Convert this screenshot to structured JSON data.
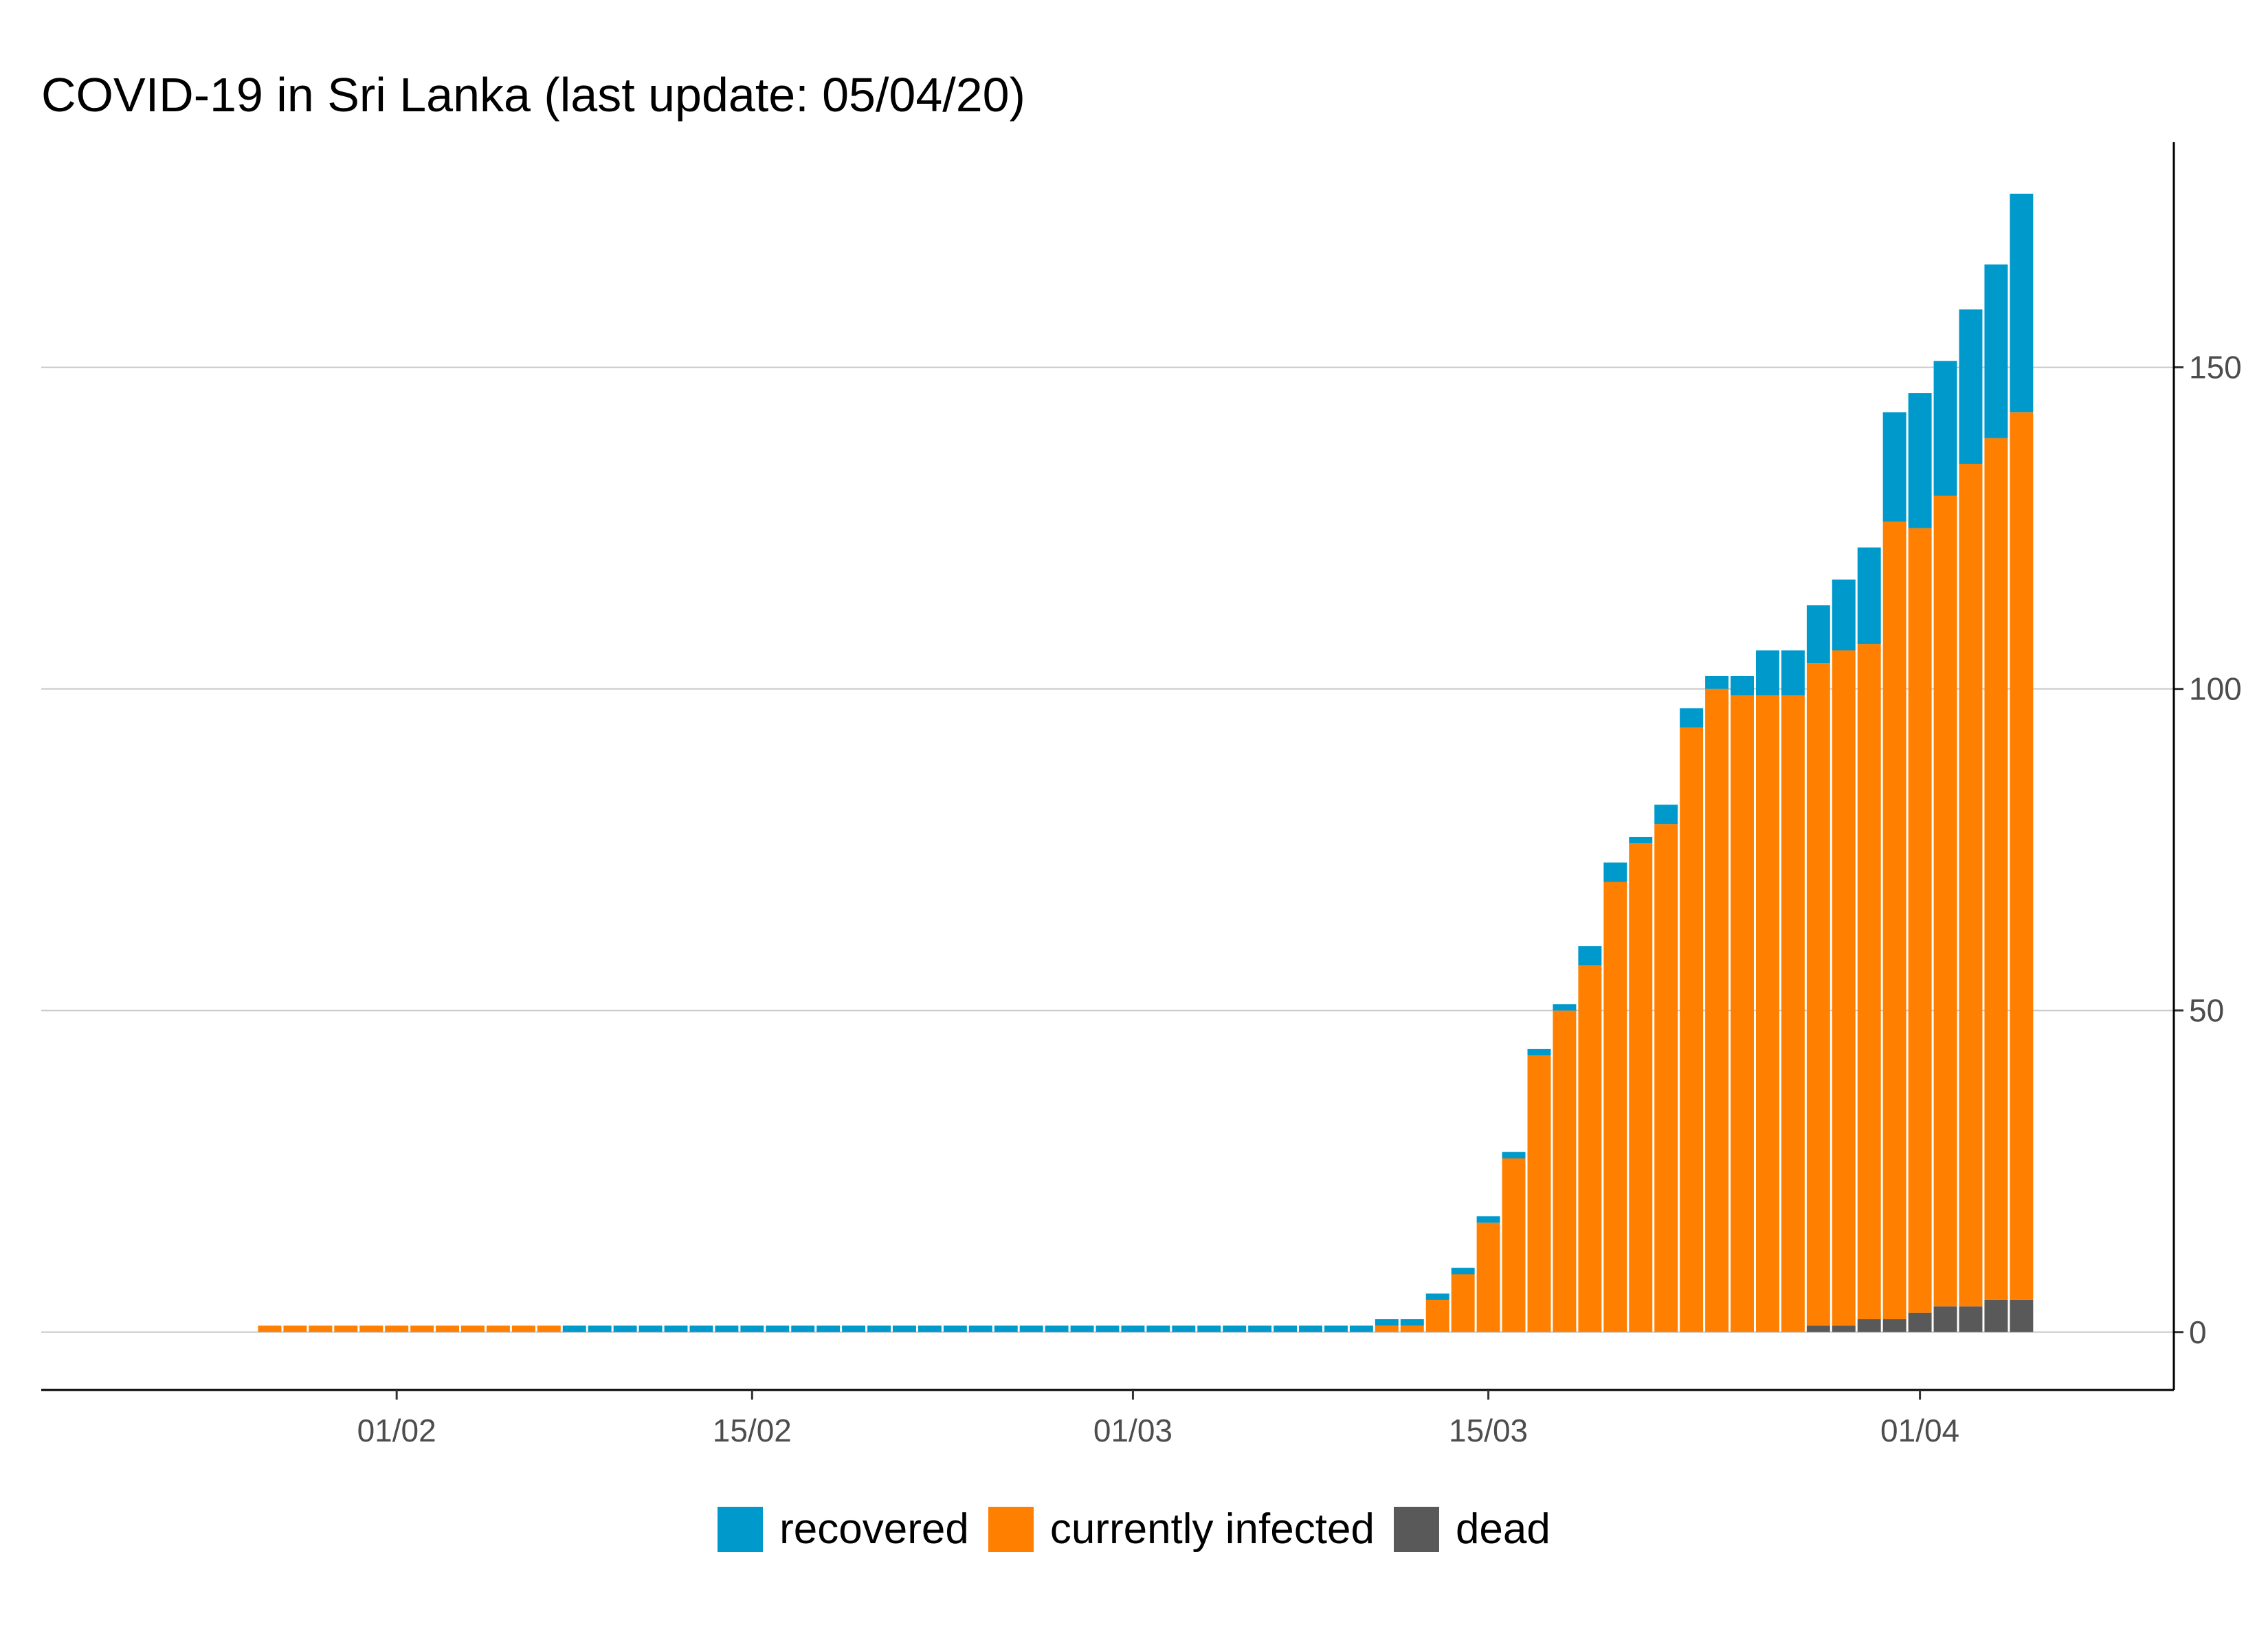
{
  "chart_data": {
    "type": "bar",
    "stacked": true,
    "title": "COVID-19 in Sri Lanka (last update: 05/04/20)",
    "xlabel": "",
    "ylabel": "",
    "y_axis_position": "right",
    "ylim": [
      -9,
      185
    ],
    "y_ticks": [
      0,
      50,
      100,
      150
    ],
    "grid": "horizontal",
    "x_tick_labels": [
      {
        "date": "2020-02-01",
        "label": "01/02"
      },
      {
        "date": "2020-02-15",
        "label": "15/02"
      },
      {
        "date": "2020-03-01",
        "label": "01/03"
      },
      {
        "date": "2020-03-15",
        "label": "15/03"
      },
      {
        "date": "2020-04-01",
        "label": "01/04"
      }
    ],
    "xlim": [
      "2020-01-18",
      "2020-04-11"
    ],
    "series": [
      {
        "name": "dead",
        "color": "#595959"
      },
      {
        "name": "currently infected",
        "color": "#FF7F00"
      },
      {
        "name": "recovered",
        "color": "#0099CC"
      }
    ],
    "dates": [
      "2020-01-27",
      "2020-01-28",
      "2020-01-29",
      "2020-01-30",
      "2020-01-31",
      "2020-02-01",
      "2020-02-02",
      "2020-02-03",
      "2020-02-04",
      "2020-02-05",
      "2020-02-06",
      "2020-02-07",
      "2020-02-08",
      "2020-02-09",
      "2020-02-10",
      "2020-02-11",
      "2020-02-12",
      "2020-02-13",
      "2020-02-14",
      "2020-02-15",
      "2020-02-16",
      "2020-02-17",
      "2020-02-18",
      "2020-02-19",
      "2020-02-20",
      "2020-02-21",
      "2020-02-22",
      "2020-02-23",
      "2020-02-24",
      "2020-02-25",
      "2020-02-26",
      "2020-02-27",
      "2020-02-28",
      "2020-02-29",
      "2020-03-01",
      "2020-03-02",
      "2020-03-03",
      "2020-03-04",
      "2020-03-05",
      "2020-03-06",
      "2020-03-07",
      "2020-03-08",
      "2020-03-09",
      "2020-03-10",
      "2020-03-11",
      "2020-03-12",
      "2020-03-13",
      "2020-03-14",
      "2020-03-15",
      "2020-03-16",
      "2020-03-17",
      "2020-03-18",
      "2020-03-19",
      "2020-03-20",
      "2020-03-21",
      "2020-03-22",
      "2020-03-23",
      "2020-03-24",
      "2020-03-25",
      "2020-03-26",
      "2020-03-27",
      "2020-03-28",
      "2020-03-29",
      "2020-03-30",
      "2020-03-31",
      "2020-04-01",
      "2020-04-02",
      "2020-04-03",
      "2020-04-04",
      "2020-04-05"
    ],
    "dead": [
      0,
      0,
      0,
      0,
      0,
      0,
      0,
      0,
      0,
      0,
      0,
      0,
      0,
      0,
      0,
      0,
      0,
      0,
      0,
      0,
      0,
      0,
      0,
      0,
      0,
      0,
      0,
      0,
      0,
      0,
      0,
      0,
      0,
      0,
      0,
      0,
      0,
      0,
      0,
      0,
      0,
      0,
      0,
      0,
      0,
      0,
      0,
      0,
      0,
      0,
      0,
      0,
      0,
      0,
      0,
      0,
      0,
      0,
      0,
      0,
      0,
      1,
      1,
      2,
      2,
      3,
      4,
      4,
      5,
      5
    ],
    "currently_infected": [
      1,
      1,
      1,
      1,
      1,
      1,
      1,
      1,
      1,
      1,
      1,
      1,
      0,
      0,
      0,
      0,
      0,
      0,
      0,
      0,
      0,
      0,
      0,
      0,
      0,
      0,
      0,
      0,
      0,
      0,
      0,
      0,
      0,
      0,
      0,
      0,
      0,
      0,
      0,
      0,
      0,
      0,
      0,
      0,
      1,
      1,
      5,
      9,
      17,
      27,
      43,
      50,
      57,
      70,
      76,
      79,
      94,
      100,
      99,
      99,
      99,
      103,
      105,
      105,
      124,
      122,
      126,
      131,
      134,
      138
    ],
    "recovered": [
      0,
      0,
      0,
      0,
      0,
      0,
      0,
      0,
      0,
      0,
      0,
      0,
      1,
      1,
      1,
      1,
      1,
      1,
      1,
      1,
      1,
      1,
      1,
      1,
      1,
      1,
      1,
      1,
      1,
      1,
      1,
      1,
      1,
      1,
      1,
      1,
      1,
      1,
      1,
      1,
      1,
      1,
      1,
      1,
      1,
      1,
      1,
      1,
      1,
      1,
      1,
      1,
      3,
      3,
      1,
      3,
      3,
      2,
      3,
      7,
      7,
      9,
      11,
      15,
      17,
      21,
      21,
      24,
      27,
      34
    ]
  },
  "legend": {
    "items": [
      {
        "label": "recovered",
        "color": "#0099CC"
      },
      {
        "label": "currently infected",
        "color": "#FF7F00"
      },
      {
        "label": "dead",
        "color": "#595959"
      }
    ]
  }
}
